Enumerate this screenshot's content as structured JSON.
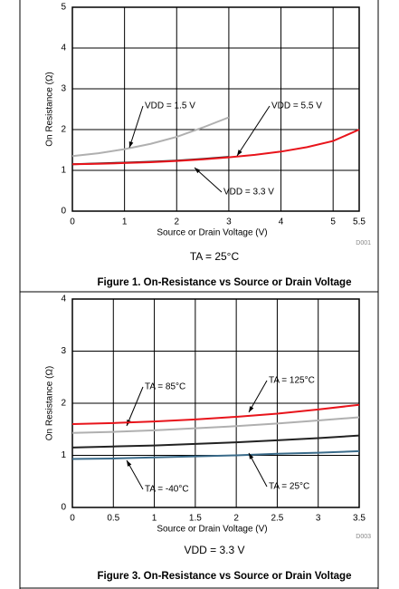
{
  "chart_data": [
    {
      "type": "line",
      "y_label": "On Resistance (Ω)",
      "x_label": "Source or Drain Voltage (V)",
      "code": "D001",
      "condition": "TA = 25°C",
      "caption": "Figure 1. On-Resistance vs Source or Drain Voltage",
      "x": [
        0,
        0.5,
        1,
        1.5,
        2,
        2.5,
        3,
        3.5,
        4,
        4.5,
        5,
        5.5
      ],
      "xlim": [
        0,
        5.5
      ],
      "xticks": [
        0,
        1,
        2,
        3,
        4,
        5,
        5.5
      ],
      "ylim": [
        0,
        5
      ],
      "yticks": [
        0,
        1,
        2,
        3,
        4,
        5
      ],
      "grid": true,
      "series": [
        {
          "name": "VDD = 1.5 V",
          "color": "#b0b0b0",
          "values": [
            1.35,
            1.42,
            1.52,
            1.65,
            1.82,
            2.05,
            2.3,
            null,
            null,
            null,
            null,
            null
          ]
        },
        {
          "name": "VDD = 3.3 V",
          "color": "#222222",
          "values": [
            1.15,
            1.17,
            1.19,
            1.21,
            1.24,
            1.28,
            1.33,
            null,
            null,
            null,
            null,
            null
          ]
        },
        {
          "name": "VDD = 5.5 V",
          "color": "#e8141b",
          "values": [
            1.15,
            1.16,
            1.18,
            1.2,
            1.23,
            1.27,
            1.32,
            1.38,
            1.46,
            1.57,
            1.72,
            2.0
          ]
        }
      ]
    },
    {
      "type": "line",
      "y_label": "On Resistance (Ω)",
      "x_label": "Source or Drain Voltage (V)",
      "code": "D003",
      "condition": "VDD = 3.3 V",
      "caption": "Figure 3. On-Resistance vs Source or Drain Voltage",
      "x": [
        0,
        0.5,
        1,
        1.5,
        2,
        2.5,
        3,
        3.5
      ],
      "xlim": [
        0,
        3.5
      ],
      "xticks": [
        0,
        0.5,
        1,
        1.5,
        2,
        2.5,
        3,
        3.5
      ],
      "ylim": [
        0,
        4
      ],
      "yticks": [
        0,
        1,
        2,
        3,
        4
      ],
      "grid": true,
      "series": [
        {
          "name": "TA = 85°C",
          "color": "#b0b0b0",
          "values": [
            1.43,
            1.45,
            1.48,
            1.52,
            1.56,
            1.61,
            1.67,
            1.73
          ]
        },
        {
          "name": "TA = 125°C",
          "color": "#e8141b",
          "values": [
            1.6,
            1.62,
            1.65,
            1.69,
            1.74,
            1.8,
            1.88,
            1.97
          ]
        },
        {
          "name": "TA = -40°C",
          "color": "#3a6b8a",
          "values": [
            0.93,
            0.94,
            0.96,
            0.98,
            1.0,
            1.03,
            1.05,
            1.08
          ]
        },
        {
          "name": "TA = 25°C",
          "color": "#222222",
          "values": [
            1.15,
            1.17,
            1.19,
            1.22,
            1.25,
            1.29,
            1.33,
            1.38
          ]
        }
      ]
    }
  ]
}
